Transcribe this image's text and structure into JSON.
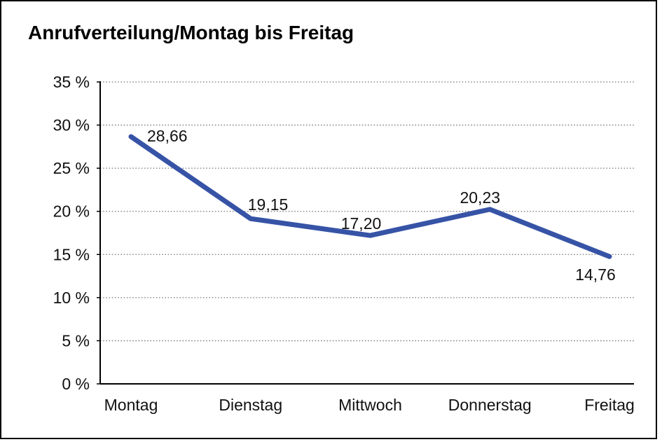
{
  "window": {
    "background_color": "#ffffff",
    "border_color": "#000000"
  },
  "chart_data": {
    "type": "line",
    "title": "Anrufverteilung/Montag bis Freitag",
    "categories": [
      "Montag",
      "Dienstag",
      "Mittwoch",
      "Donnerstag",
      "Freitag"
    ],
    "values": [
      28.66,
      19.15,
      17.2,
      20.23,
      14.76
    ],
    "value_labels": [
      "28,66",
      "19,15",
      "17,20",
      "20,23",
      "14,76"
    ],
    "xlabel": "",
    "ylabel": "",
    "ylim": [
      0,
      35
    ],
    "y_tick_values": [
      0,
      5,
      10,
      15,
      20,
      25,
      30,
      35
    ],
    "y_tick_labels": [
      "0 %",
      "5 %",
      "10 %",
      "15 %",
      "20 %",
      "25 %",
      "30 %",
      "35 %"
    ],
    "grid": "horizontal-dotted",
    "legend": "none",
    "line_color": "#3653A6",
    "axis_color": "#000000",
    "grid_color": "#7a7a7a",
    "text_color": "#111111"
  }
}
